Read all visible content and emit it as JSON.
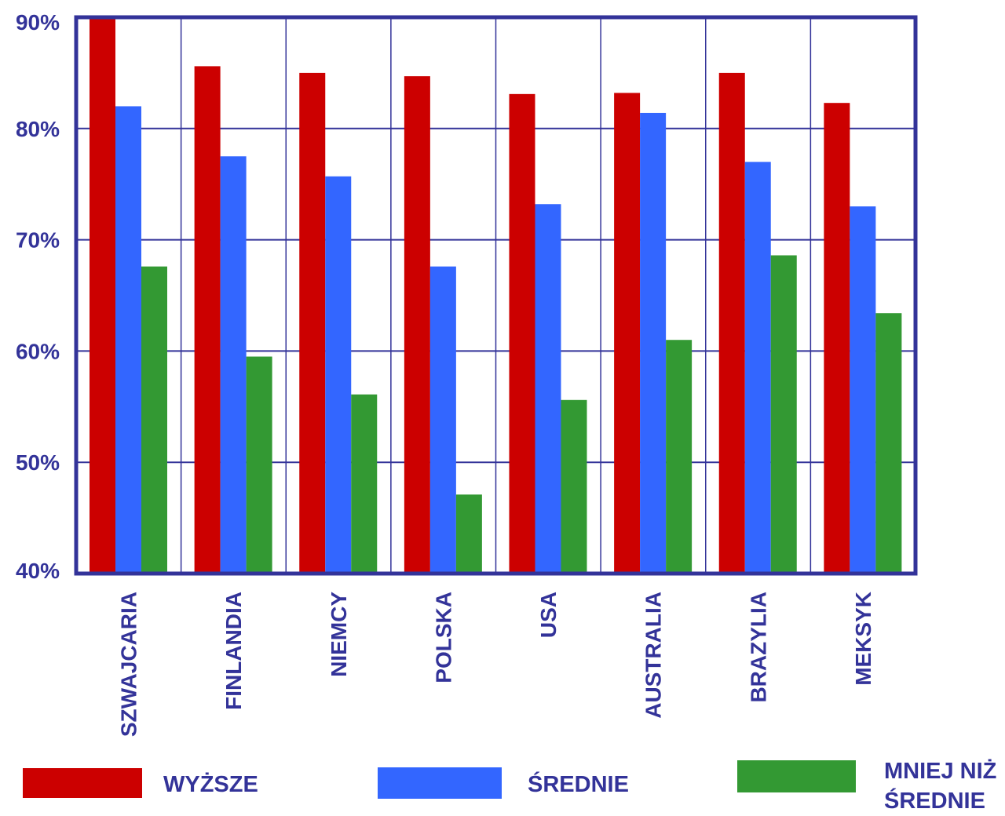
{
  "chart_data": {
    "type": "bar",
    "categories": [
      "SZWAJCARIA",
      "FINLANDIA",
      "NIEMCY",
      "POLSKA",
      "USA",
      "AUSTRALIA",
      "BRAZYLIA",
      "MEKSYK"
    ],
    "series": [
      {
        "name": "WYŻSZE",
        "color": "#cc0000",
        "values": [
          90,
          85.6,
          85,
          84.7,
          83.1,
          83.2,
          85,
          82.3
        ]
      },
      {
        "name": "ŚREDNIE",
        "color": "#3366ff",
        "values": [
          82,
          77.5,
          75.7,
          67.6,
          73.2,
          81.4,
          77,
          73
        ]
      },
      {
        "name": "MNIEJ NIŻ ŚREDNIE",
        "color": "#339933",
        "values": [
          67.6,
          59.5,
          56.1,
          47.1,
          55.6,
          61,
          68.6,
          63.4
        ]
      }
    ],
    "yticks": [
      "40%",
      "50%",
      "60%",
      "70%",
      "80%",
      "90%"
    ],
    "yticks_values": [
      40,
      50,
      60,
      70,
      80,
      90
    ],
    "ylim": [
      40,
      90
    ],
    "grid": true,
    "legend_position": "bottom",
    "axis_color": "#333399",
    "label_color": "#333399"
  }
}
